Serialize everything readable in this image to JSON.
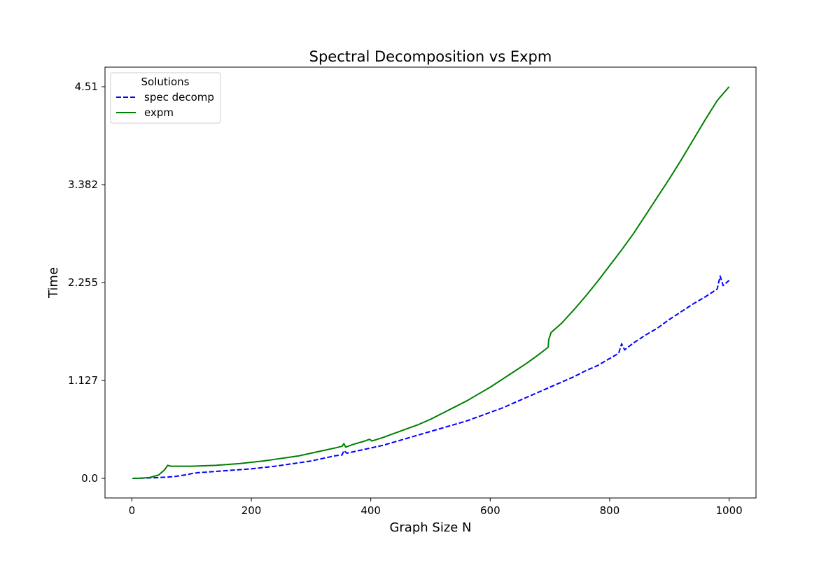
{
  "chart_data": {
    "type": "line",
    "title": "Spectral Decomposition vs Expm",
    "xlabel": "Graph Size N",
    "ylabel": "Time",
    "xlim": [
      -45,
      1045
    ],
    "ylim": [
      -0.2255,
      4.7355
    ],
    "xticks": [
      0,
      200,
      400,
      600,
      800,
      1000
    ],
    "xtick_labels": [
      "0",
      "200",
      "400",
      "600",
      "800",
      "1000"
    ],
    "yticks": [
      0.0,
      1.127,
      2.255,
      3.382,
      4.51
    ],
    "ytick_labels": [
      "0.0",
      "1.127",
      "2.255",
      "3.382",
      "4.51"
    ],
    "grid": false,
    "legend": {
      "title": "Solutions",
      "placement": "top-left",
      "entries": [
        "spec decomp",
        "expm"
      ]
    },
    "series": [
      {
        "name": "spec decomp",
        "color": "#0000ff",
        "style": "dashed",
        "x": [
          1,
          20,
          40,
          60,
          70,
          80,
          90,
          100,
          110,
          120,
          140,
          160,
          180,
          200,
          220,
          240,
          260,
          280,
          300,
          320,
          340,
          352,
          355,
          360,
          380,
          400,
          420,
          440,
          460,
          480,
          500,
          520,
          540,
          560,
          580,
          600,
          620,
          640,
          660,
          680,
          700,
          720,
          740,
          760,
          770,
          780,
          800,
          815,
          820,
          825,
          840,
          860,
          880,
          900,
          920,
          940,
          960,
          980,
          985,
          990,
          1000
        ],
        "y": [
          0.0,
          0.003,
          0.008,
          0.015,
          0.02,
          0.03,
          0.04,
          0.055,
          0.065,
          0.07,
          0.08,
          0.09,
          0.1,
          0.11,
          0.125,
          0.14,
          0.16,
          0.18,
          0.2,
          0.23,
          0.26,
          0.27,
          0.32,
          0.29,
          0.32,
          0.35,
          0.38,
          0.42,
          0.46,
          0.5,
          0.54,
          0.58,
          0.62,
          0.66,
          0.71,
          0.76,
          0.81,
          0.87,
          0.93,
          0.99,
          1.05,
          1.11,
          1.17,
          1.24,
          1.27,
          1.3,
          1.38,
          1.44,
          1.55,
          1.48,
          1.56,
          1.65,
          1.73,
          1.83,
          1.92,
          2.01,
          2.09,
          2.18,
          2.33,
          2.22,
          2.28
        ]
      },
      {
        "name": "expm",
        "color": "#008000",
        "style": "solid",
        "x": [
          1,
          15,
          30,
          45,
          55,
          60,
          65,
          80,
          100,
          120,
          140,
          160,
          180,
          200,
          220,
          240,
          260,
          280,
          300,
          320,
          340,
          352,
          355,
          358,
          370,
          380,
          390,
          398,
          402,
          420,
          440,
          460,
          480,
          500,
          520,
          540,
          560,
          580,
          600,
          620,
          640,
          660,
          680,
          697,
          698,
          702,
          720,
          740,
          760,
          780,
          800,
          820,
          840,
          860,
          880,
          900,
          920,
          940,
          960,
          980,
          1000
        ],
        "y": [
          0.0,
          0.002,
          0.01,
          0.04,
          0.1,
          0.15,
          0.14,
          0.14,
          0.14,
          0.145,
          0.15,
          0.16,
          0.17,
          0.185,
          0.2,
          0.22,
          0.24,
          0.26,
          0.29,
          0.32,
          0.35,
          0.37,
          0.4,
          0.36,
          0.39,
          0.41,
          0.43,
          0.45,
          0.43,
          0.47,
          0.52,
          0.57,
          0.62,
          0.68,
          0.75,
          0.82,
          0.89,
          0.97,
          1.05,
          1.14,
          1.23,
          1.32,
          1.42,
          1.51,
          1.6,
          1.68,
          1.79,
          1.94,
          2.1,
          2.27,
          2.45,
          2.63,
          2.82,
          3.03,
          3.24,
          3.45,
          3.67,
          3.9,
          4.13,
          4.35,
          4.51
        ]
      }
    ]
  }
}
